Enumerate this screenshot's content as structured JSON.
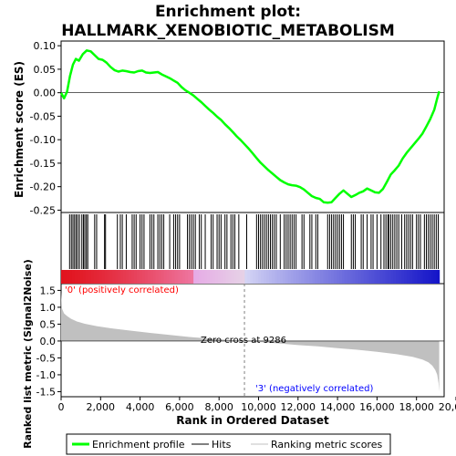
{
  "colors": {
    "enrichment": "#00ff00",
    "hits": "#000000",
    "metric": "#c0c0c0",
    "positive_label": "#ff0000",
    "negative_label": "#0000ff",
    "zero_line": "#808080"
  },
  "chart_data": {
    "type": "line",
    "title_line1": "Enrichment plot:",
    "title_line2": "HALLMARK_XENOBIOTIC_METABOLISM",
    "xlabel": "Rank in Ordered Dataset",
    "es_ylabel": "Enrichment score (ES)",
    "metric_ylabel": "Ranked list metric (Signal2Noise)",
    "xlim": [
      0,
      19400
    ],
    "es_ylim": [
      -0.255,
      0.11
    ],
    "metric_ylim": [
      -1.65,
      1.7
    ],
    "x_ticks": [
      0,
      2000,
      4000,
      6000,
      8000,
      10000,
      12000,
      14000,
      16000,
      18000,
      20000
    ],
    "x_tick_labels": [
      "0",
      "2,000",
      "4,000",
      "6,000",
      "8,000",
      "10,000",
      "12,000",
      "14,000",
      "16,000",
      "18,000",
      "20,000"
    ],
    "es_ticks": [
      0.1,
      0.05,
      0.0,
      -0.05,
      -0.1,
      -0.15,
      -0.2,
      -0.25
    ],
    "es_tick_labels": [
      "0.10",
      "0.05",
      "0.00",
      "-0.05",
      "-0.10",
      "-0.15",
      "-0.20",
      "-0.25"
    ],
    "metric_ticks": [
      1.5,
      1.0,
      0.5,
      0.0,
      -0.5,
      -1.0,
      -1.5
    ],
    "metric_tick_labels": [
      "1.5",
      "1.0",
      "0.5",
      "0.0",
      "-0.5",
      "-1.0",
      "-1.5"
    ],
    "enrichment_profile": {
      "x": [
        0,
        150,
        300,
        450,
        600,
        750,
        900,
        1100,
        1300,
        1500,
        1700,
        1900,
        2100,
        2300,
        2500,
        2700,
        2900,
        3100,
        3300,
        3500,
        3700,
        3900,
        4100,
        4300,
        4500,
        4700,
        4900,
        5100,
        5300,
        5500,
        5700,
        5900,
        6100,
        6300,
        6500,
        6700,
        6900,
        7100,
        7300,
        7500,
        7700,
        7900,
        8100,
        8300,
        8500,
        8700,
        8900,
        9100,
        9300,
        9500,
        9700,
        9900,
        10100,
        10300,
        10500,
        10700,
        10900,
        11100,
        11300,
        11500,
        11700,
        11900,
        12100,
        12300,
        12500,
        12700,
        12900,
        13100,
        13300,
        13500,
        13700,
        13900,
        14100,
        14300,
        14500,
        14700,
        14900,
        15100,
        15300,
        15500,
        15700,
        15900,
        16100,
        16300,
        16500,
        16700,
        16900,
        17100,
        17300,
        17500,
        17700,
        17900,
        18100,
        18300,
        18500,
        18700,
        18900,
        19050,
        19150
      ],
      "y": [
        0.0,
        -0.012,
        0.002,
        0.035,
        0.06,
        0.072,
        0.068,
        0.082,
        0.09,
        0.088,
        0.08,
        0.072,
        0.07,
        0.064,
        0.055,
        0.048,
        0.045,
        0.047,
        0.046,
        0.044,
        0.043,
        0.046,
        0.047,
        0.043,
        0.042,
        0.043,
        0.044,
        0.039,
        0.035,
        0.031,
        0.026,
        0.021,
        0.012,
        0.005,
        0.0,
        -0.006,
        -0.013,
        -0.02,
        -0.028,
        -0.036,
        -0.043,
        -0.051,
        -0.058,
        -0.067,
        -0.075,
        -0.084,
        -0.093,
        -0.101,
        -0.11,
        -0.119,
        -0.129,
        -0.139,
        -0.149,
        -0.157,
        -0.165,
        -0.172,
        -0.179,
        -0.186,
        -0.191,
        -0.195,
        -0.197,
        -0.198,
        -0.201,
        -0.206,
        -0.213,
        -0.22,
        -0.224,
        -0.226,
        -0.233,
        -0.234,
        -0.233,
        -0.224,
        -0.215,
        -0.208,
        -0.215,
        -0.222,
        -0.218,
        -0.213,
        -0.21,
        -0.204,
        -0.208,
        -0.212,
        -0.213,
        -0.205,
        -0.19,
        -0.174,
        -0.165,
        -0.155,
        -0.14,
        -0.128,
        -0.118,
        -0.108,
        -0.098,
        -0.087,
        -0.072,
        -0.056,
        -0.036,
        -0.012,
        0.003
      ]
    },
    "hit_positions": [
      430,
      520,
      600,
      680,
      760,
      840,
      930,
      1050,
      1130,
      1200,
      1280,
      1350,
      1700,
      1800,
      2200,
      2250,
      2850,
      3000,
      3100,
      3300,
      3600,
      3700,
      3800,
      4000,
      4100,
      4200,
      4500,
      4600,
      4700,
      4900,
      5000,
      5100,
      5200,
      5500,
      5700,
      5800,
      5900,
      6000,
      6400,
      6500,
      6600,
      6700,
      6800,
      7000,
      7100,
      7300,
      7600,
      7700,
      7900,
      8000,
      8100,
      8300,
      8400,
      8600,
      8700,
      8800,
      9000,
      9400,
      9900,
      10000,
      10100,
      10200,
      10300,
      10400,
      10500,
      10600,
      10700,
      10800,
      10900,
      11100,
      11300,
      11400,
      11500,
      11600,
      11700,
      11800,
      11900,
      12200,
      12300,
      12600,
      12700,
      12900,
      13000,
      13500,
      13600,
      13700,
      13800,
      13900,
      14000,
      14100,
      14200,
      14300,
      14700,
      14800,
      14900,
      15200,
      15300,
      15500,
      15700,
      15800,
      16000,
      16200,
      16350,
      16450,
      16550,
      16600,
      16700,
      16800,
      16900,
      17000,
      17100,
      17250,
      17400,
      17500,
      17600,
      17700,
      17800,
      18000,
      18100,
      18200,
      18400,
      18500,
      18600,
      18700,
      18800,
      18900,
      19000,
      19100
    ],
    "metric_curve": {
      "x": [
        0,
        50,
        150,
        300,
        500,
        800,
        1200,
        1800,
        2500,
        3500,
        4500,
        5500,
        6500,
        7500,
        8500,
        9286,
        10000,
        11000,
        12000,
        13000,
        14000,
        15000,
        16000,
        17000,
        17800,
        18300,
        18600,
        18800,
        18950,
        19050,
        19120,
        19150
      ],
      "y": [
        1.45,
        0.95,
        0.82,
        0.74,
        0.66,
        0.58,
        0.51,
        0.44,
        0.38,
        0.31,
        0.24,
        0.18,
        0.12,
        0.07,
        0.03,
        0.0,
        -0.03,
        -0.07,
        -0.12,
        -0.16,
        -0.21,
        -0.26,
        -0.32,
        -0.39,
        -0.47,
        -0.55,
        -0.63,
        -0.73,
        -0.86,
        -1.0,
        -1.25,
        -1.5
      ]
    },
    "zero_cross_rank": 9286,
    "zero_cross_label": "Zero cross at 9286",
    "positive_label": "'0' (positively correlated)",
    "negative_label": "'3' (negatively correlated)",
    "legend": {
      "items": [
        {
          "label": "Enrichment profile"
        },
        {
          "label": "Hits"
        },
        {
          "label": "Ranking metric scores"
        }
      ]
    }
  }
}
